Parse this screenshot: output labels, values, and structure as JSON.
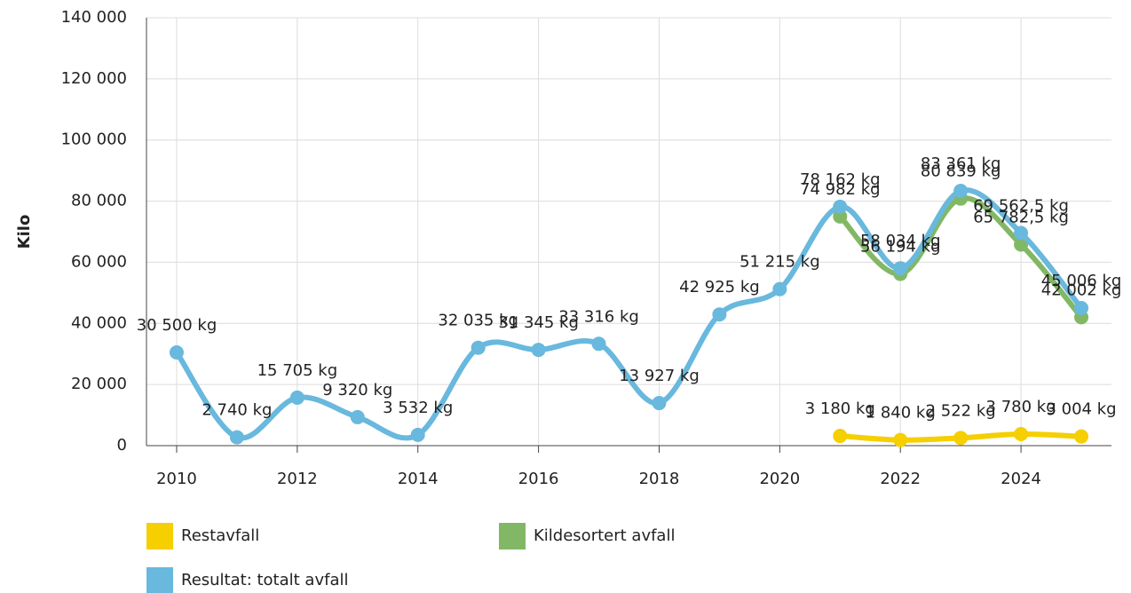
{
  "chart_data": {
    "type": "line",
    "y_label": "Kilo",
    "xlim": [
      2009.5,
      2025.5
    ],
    "xticks": [
      2010,
      2012,
      2014,
      2016,
      2018,
      2020,
      2022,
      2024
    ],
    "ylim": [
      0,
      140000
    ],
    "yticks": [
      0,
      {
        "value": 20000,
        "label": "20 000"
      },
      {
        "value": 40000,
        "label": "40 000"
      },
      {
        "value": 60000,
        "label": "60 000"
      },
      {
        "value": 80000,
        "label": "80 000"
      },
      {
        "value": 100000,
        "label": "100 000"
      },
      {
        "value": 120000,
        "label": "120 000"
      },
      {
        "value": 140000,
        "label": "140 000"
      }
    ],
    "grid": true,
    "series": [
      {
        "name": "Restavfall",
        "color": "#f5cf00",
        "x": [
          2021,
          2022,
          2023,
          2024,
          2025
        ],
        "values": [
          3180,
          1840,
          2522,
          3780,
          3004
        ],
        "value_labels": [
          "3 180 kg",
          "1 840 kg",
          "2 522 kg",
          "3 780 kg",
          "3 004 kg"
        ]
      },
      {
        "name": "Kildesortert avfall",
        "color": "#82b865",
        "x": [
          2021,
          2022,
          2023,
          2024,
          2025
        ],
        "values": [
          74982,
          56194,
          80839,
          65782.5,
          42002
        ],
        "value_labels": [
          "74 982 kg",
          "56 194 kg",
          "80 839 kg",
          "65 782,5 kg",
          "42 002 kg"
        ]
      },
      {
        "name": "Resultat: totalt avfall",
        "color": "#69b8dd",
        "x": [
          2010,
          2011,
          2012,
          2013,
          2014,
          2015,
          2016,
          2017,
          2018,
          2019,
          2020,
          2021,
          2022,
          2023,
          2024,
          2025
        ],
        "values": [
          30500,
          2740,
          15705,
          9320,
          3532,
          32035,
          31345,
          33316,
          13927,
          42925,
          51215,
          78162,
          58034,
          83361,
          69562.5,
          45006
        ],
        "value_labels": [
          "30 500 kg",
          "2 740 kg",
          "15 705 kg",
          "9 320 kg",
          "3 532 kg",
          "32 035 kg",
          "31 345 kg",
          "33 316 kg",
          "13 927 kg",
          "42 925 kg",
          "51 215 kg",
          "78 162 kg",
          "58 034 kg",
          "83 361 kg",
          "69 562,5 kg",
          "45 006 kg"
        ]
      }
    ]
  }
}
